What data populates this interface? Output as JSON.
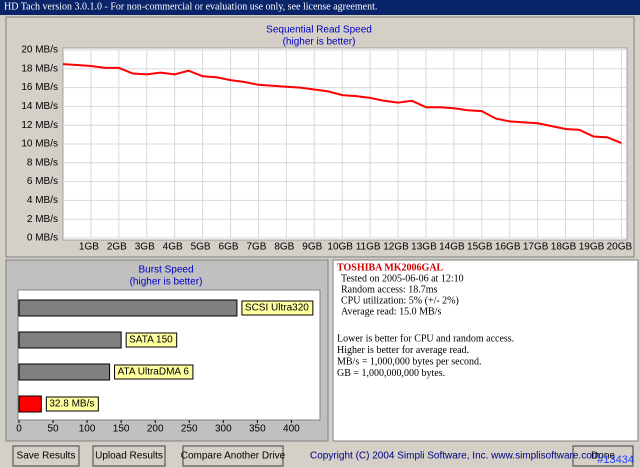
{
  "window_title": "HD Tach version 3.0.1.0 - For non-commercial or evaluation use only, see license agreement.",
  "chart_data": [
    {
      "type": "line",
      "title": "Sequential Read Speed",
      "subtitle": "(higher is better)",
      "x": [
        0,
        0.5,
        1,
        1.5,
        2,
        2.5,
        3,
        3.5,
        4,
        4.5,
        5,
        5.5,
        6,
        6.5,
        7,
        7.5,
        8,
        8.5,
        9,
        9.5,
        10,
        10.5,
        11,
        11.5,
        12,
        12.5,
        13,
        13.5,
        14,
        14.5,
        15,
        15.5,
        16,
        16.5,
        17,
        17.5,
        18,
        18.5,
        19,
        19.5,
        20
      ],
      "values": [
        18.5,
        18.4,
        18.3,
        18.1,
        18.1,
        17.5,
        17.4,
        17.6,
        17.4,
        17.8,
        17.2,
        17.1,
        16.8,
        16.6,
        16.3,
        16.2,
        16.1,
        16.0,
        15.8,
        15.6,
        15.2,
        15.1,
        14.9,
        14.6,
        14.4,
        14.6,
        13.9,
        13.9,
        13.8,
        13.6,
        13.5,
        12.7,
        12.4,
        12.3,
        12.2,
        11.9,
        11.6,
        11.5,
        10.8,
        10.7,
        10.1
      ],
      "color": "#ff0000",
      "xlim": [
        0,
        20.2
      ],
      "xticks": [
        {
          "value": 1,
          "label": "1GB"
        },
        {
          "value": 2,
          "label": "2GB"
        },
        {
          "value": 3,
          "label": "3GB"
        },
        {
          "value": 4,
          "label": "4GB"
        },
        {
          "value": 5,
          "label": "5GB"
        },
        {
          "value": 6,
          "label": "6GB"
        },
        {
          "value": 7,
          "label": "7GB"
        },
        {
          "value": 8,
          "label": "8GB"
        },
        {
          "value": 9,
          "label": "9GB"
        },
        {
          "value": 10,
          "label": "10GB"
        },
        {
          "value": 11,
          "label": "11GB"
        },
        {
          "value": 12,
          "label": "12GB"
        },
        {
          "value": 13,
          "label": "13GB"
        },
        {
          "value": 14,
          "label": "14GB"
        },
        {
          "value": 15,
          "label": "15GB"
        },
        {
          "value": 16,
          "label": "16GB"
        },
        {
          "value": 17,
          "label": "17GB"
        },
        {
          "value": 18,
          "label": "18GB"
        },
        {
          "value": 19,
          "label": "19GB"
        },
        {
          "value": 20,
          "label": "20GB"
        }
      ],
      "ylim": [
        0,
        20
      ],
      "yticks": [
        {
          "value": 0,
          "label": "0 MB/s"
        },
        {
          "value": 2,
          "label": "2 MB/s"
        },
        {
          "value": 4,
          "label": "4 MB/s"
        },
        {
          "value": 6,
          "label": "6 MB/s"
        },
        {
          "value": 8,
          "label": "8 MB/s"
        },
        {
          "value": 10,
          "label": "10 MB/s"
        },
        {
          "value": 12,
          "label": "12 MB/s"
        },
        {
          "value": 14,
          "label": "14 MB/s"
        },
        {
          "value": 16,
          "label": "16 MB/s"
        },
        {
          "value": 18,
          "label": "18 MB/s"
        },
        {
          "value": 20,
          "label": "20 MB/s"
        }
      ],
      "grid": true
    },
    {
      "type": "bar",
      "orientation": "horizontal",
      "title": "Burst Speed",
      "subtitle": "(higher is better)",
      "categories": [
        "SCSI Ultra320",
        "SATA 150",
        "ATA UltraDMA 6",
        null
      ],
      "values": [
        320,
        150,
        133,
        32.8
      ],
      "value_labels": [
        null,
        null,
        null,
        "32.8 MB/s"
      ],
      "colors": [
        "#808080",
        "#808080",
        "#808080",
        "#ff0000"
      ],
      "xlim": [
        0,
        442
      ],
      "xticks": [
        0,
        50,
        100,
        150,
        200,
        250,
        300,
        350,
        400
      ],
      "grid": false
    }
  ],
  "drive_info": {
    "name": "TOSHIBA MK2006GAL",
    "lines": [
      "Tested on 2005-06-06 at 12:10",
      "Random access: 18.7ms",
      "CPU utilization: 5% (+/- 2%)",
      "Average read: 15.0 MB/s"
    ],
    "notes": [
      "Lower is better for CPU and random access.",
      "Higher is better for average read.",
      "MB/s = 1,000,000 bytes per second.",
      "GB = 1,000,000,000 bytes."
    ]
  },
  "buttons": [
    "Save Results",
    "Upload Results",
    "Compare Another Drive",
    "Done"
  ],
  "copyright": "Copyright (C) 2004 Simpli Software, Inc. www.simplisoftware.com",
  "watermark": "#13434"
}
